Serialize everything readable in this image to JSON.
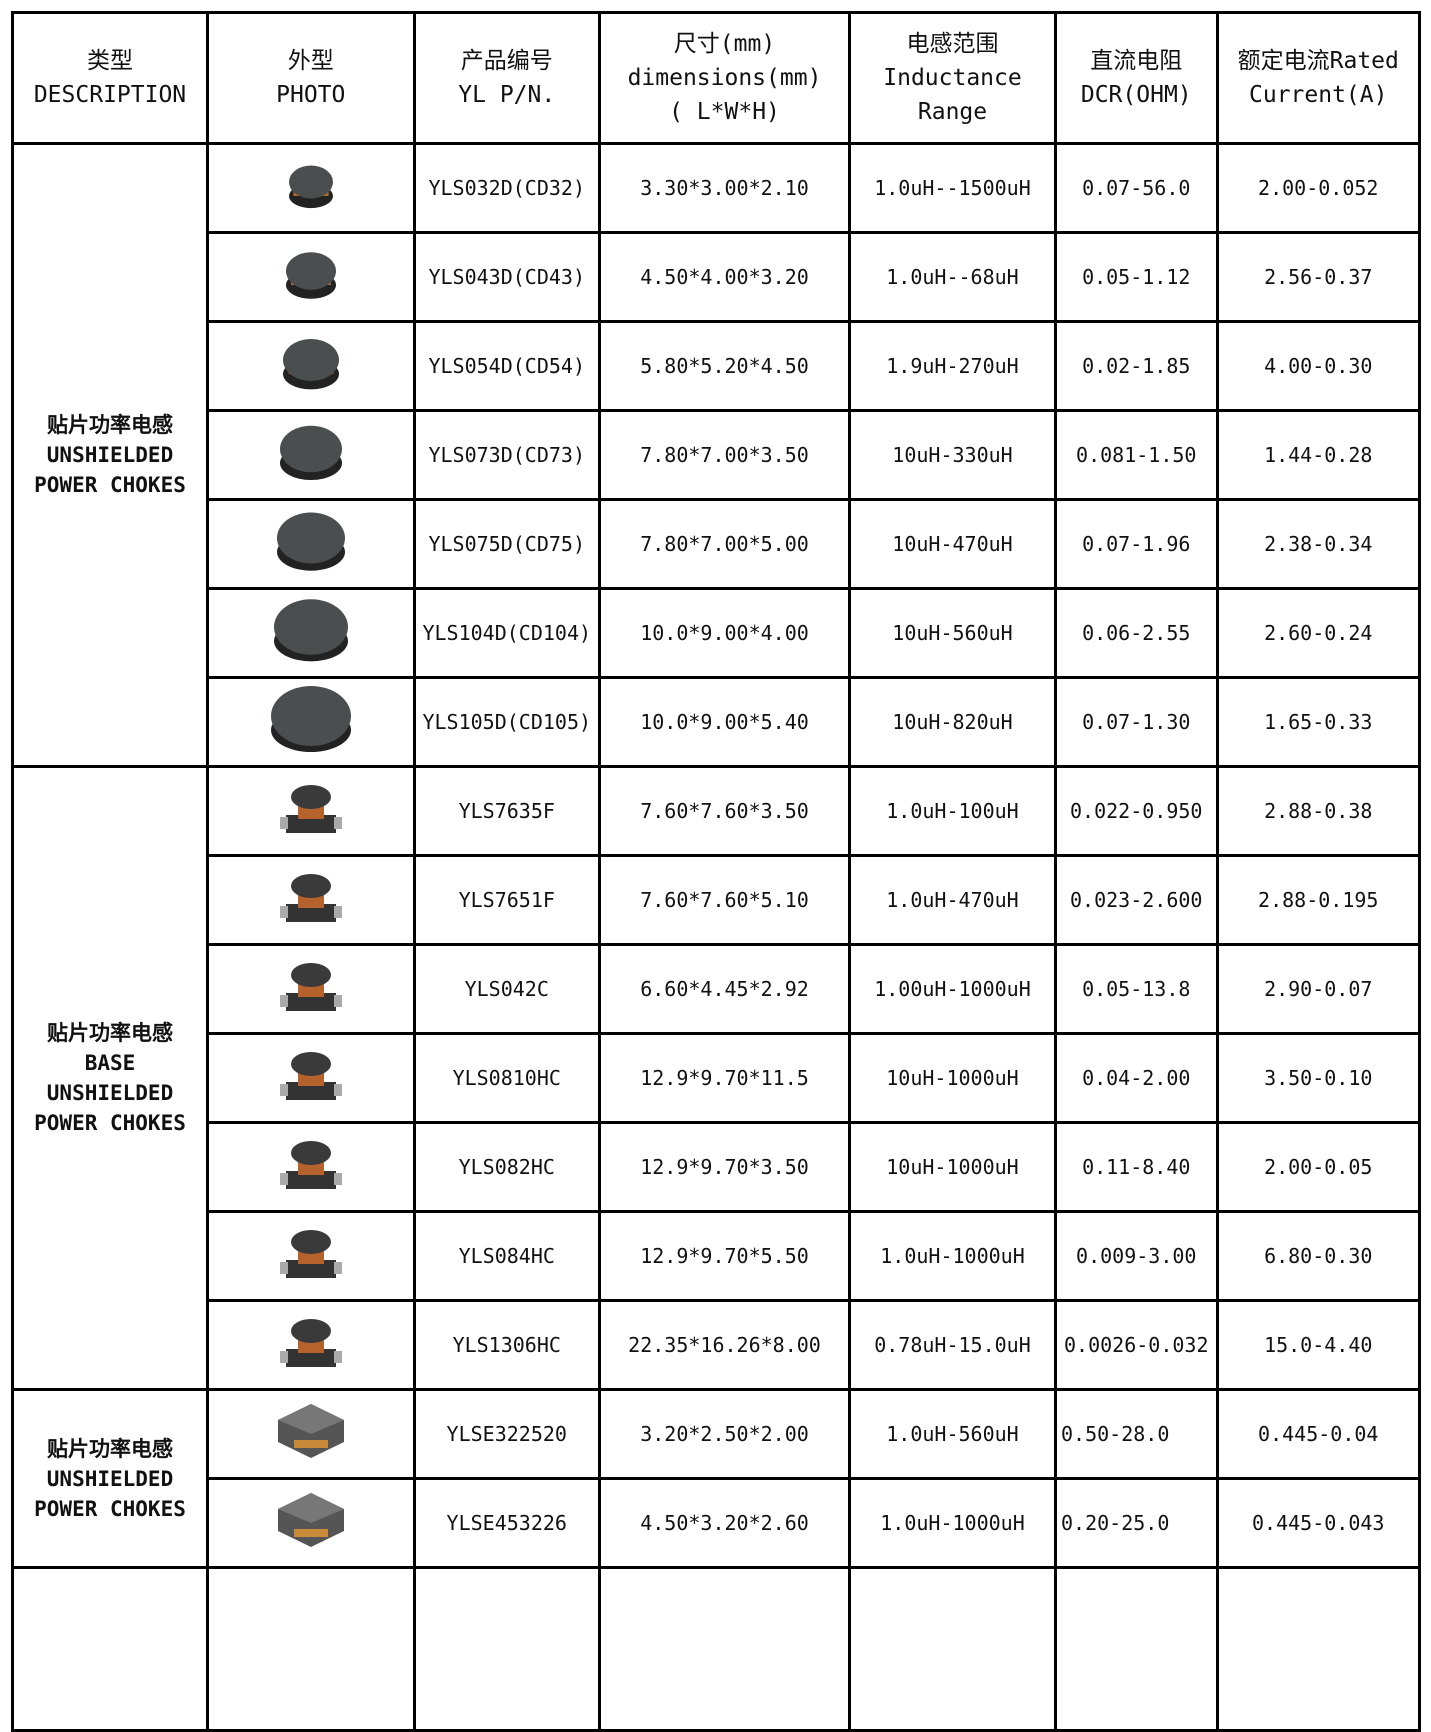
{
  "header": {
    "columns": [
      {
        "lines": [
          "类型",
          "DESCRIPTION"
        ]
      },
      {
        "lines": [
          "外型",
          "PHOTO"
        ]
      },
      {
        "lines": [
          "产品编号",
          "YL P/N."
        ]
      },
      {
        "lines": [
          "尺寸(mm)",
          "dimensions(mm)",
          "( L*W*H)"
        ]
      },
      {
        "lines": [
          "电感范围",
          "Inductance",
          "Range"
        ]
      },
      {
        "lines": [
          "直流电阻",
          "DCR(OHM)"
        ]
      },
      {
        "lines": [
          "额定电流Rated",
          "Current(A)"
        ]
      }
    ]
  },
  "groups": [
    {
      "description": [
        "贴片功率电感",
        "UNSHIELDED",
        "POWER CHOKES"
      ],
      "rows": [
        [
          "YLS032D(CD32)",
          "3.30*3.00*2.10",
          "1.0uH--1500uH",
          "0.07-56.0",
          "2.00-0.052"
        ],
        [
          "YLS043D(CD43)",
          "4.50*4.00*3.20",
          "1.0uH--68uH",
          "0.05-1.12",
          "2.56-0.37"
        ],
        [
          "YLS054D(CD54)",
          "5.80*5.20*4.50",
          "1.9uH-270uH",
          "0.02-1.85",
          "4.00-0.30"
        ],
        [
          "YLS073D(CD73)",
          "7.80*7.00*3.50",
          "10uH-330uH",
          "0.081-1.50",
          "1.44-0.28"
        ],
        [
          "YLS075D(CD75)",
          "7.80*7.00*5.00",
          "10uH-470uH",
          "0.07-1.96",
          "2.38-0.34"
        ],
        [
          "YLS104D(CD104)",
          "10.0*9.00*4.00",
          "10uH-560uH",
          "0.06-2.55",
          "2.60-0.24"
        ],
        [
          "YLS105D(CD105)",
          "10.0*9.00*5.40",
          "10uH-820uH",
          "0.07-1.30",
          "1.65-0.33"
        ]
      ]
    },
    {
      "description": [
        "贴片功率电感",
        "BASE",
        "UNSHIELDED",
        "POWER CHOKES"
      ],
      "rows": [
        [
          "YLS7635F",
          "7.60*7.60*3.50",
          "1.0uH-100uH",
          "0.022-0.950",
          "2.88-0.38"
        ],
        [
          "YLS7651F",
          "7.60*7.60*5.10",
          "1.0uH-470uH",
          "0.023-2.600",
          "2.88-0.195"
        ],
        [
          "YLS042C",
          "6.60*4.45*2.92",
          "1.00uH-1000uH",
          "0.05-13.8",
          "2.90-0.07"
        ],
        [
          "YLS0810HC",
          "12.9*9.70*11.5",
          "10uH-1000uH",
          "0.04-2.00",
          "3.50-0.10"
        ],
        [
          "YLS082HC",
          "12.9*9.70*3.50",
          "10uH-1000uH",
          "0.11-8.40",
          "2.00-0.05"
        ],
        [
          "YLS084HC",
          "12.9*9.70*5.50",
          "1.0uH-1000uH",
          "0.009-3.00",
          "6.80-0.30"
        ],
        [
          "YLS1306HC",
          "22.35*16.26*8.00",
          "0.78uH-15.0uH",
          "0.0026-0.032",
          "15.0-4.40"
        ]
      ]
    },
    {
      "description": [
        "贴片功率电感",
        "UNSHIELDED",
        "POWER CHOKES"
      ],
      "rows": [
        [
          "YLSE322520",
          "3.20*2.50*2.00",
          "1.0uH-560uH",
          "0.50-28.0",
          "0.445-0.04"
        ],
        [
          "YLSE453226",
          "4.50*3.20*2.60",
          "1.0uH-1000uH",
          "0.20-25.0",
          "0.445-0.043"
        ]
      ]
    }
  ]
}
